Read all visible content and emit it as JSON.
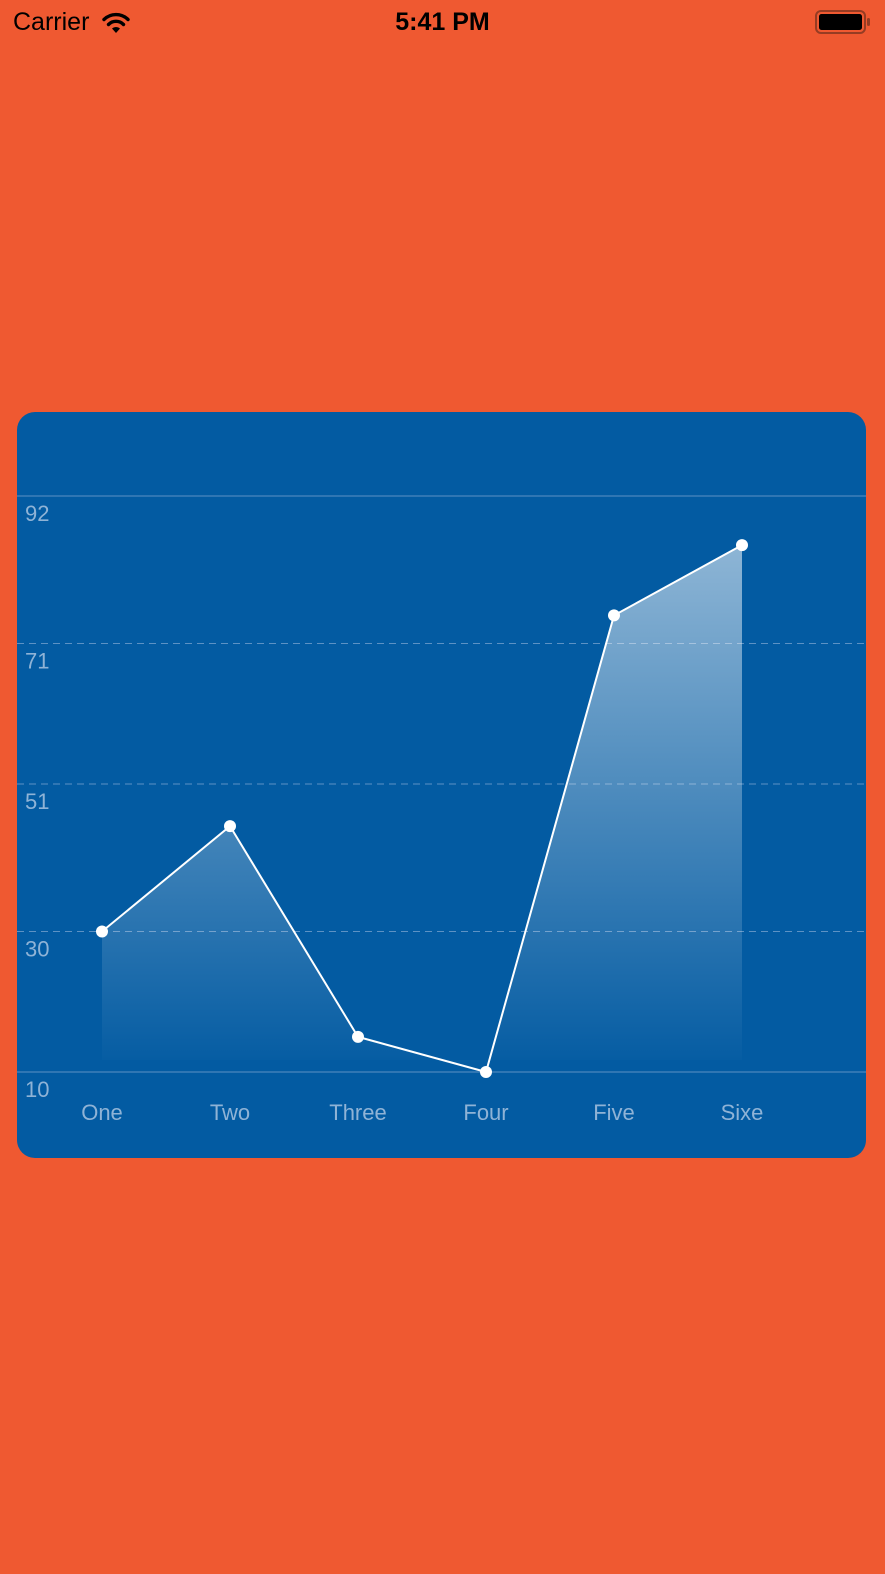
{
  "status_bar": {
    "carrier": "Carrier",
    "time": "5:41 PM",
    "icons": [
      "wifi-icon",
      "battery-icon"
    ]
  },
  "colors": {
    "background": "#ef5931",
    "card": "#035ba2",
    "line": "#ffffff",
    "axis_text": "#8fb3d6",
    "grid": "#5d92c4"
  },
  "chart_data": {
    "type": "area",
    "categories": [
      "One",
      "Two",
      "Three",
      "Four",
      "Five",
      "Sixe"
    ],
    "series": [
      {
        "values": [
          30,
          45,
          15,
          10,
          75,
          85
        ]
      }
    ],
    "yticks": [
      "10",
      "30",
      "51",
      "71",
      "92"
    ],
    "ylim": [
      10,
      92
    ],
    "grid": true
  }
}
